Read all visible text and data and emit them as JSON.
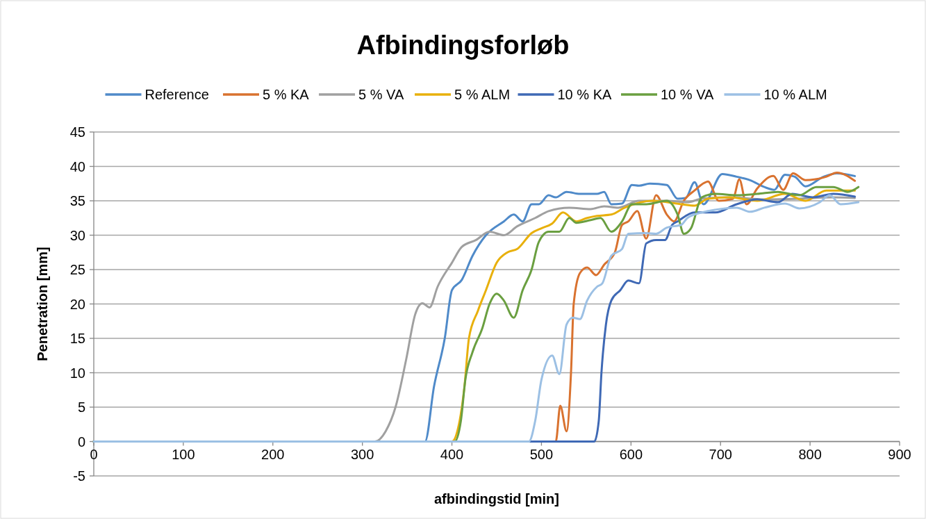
{
  "chart_data": {
    "type": "line",
    "title": "Afbindingsforløb",
    "xlabel": "afbindingstid [min]",
    "ylabel": "Penetration [mm]",
    "xlim": [
      0,
      900
    ],
    "xticks": [
      0,
      100,
      200,
      300,
      400,
      500,
      600,
      700,
      800,
      900
    ],
    "ylim": [
      -5,
      45
    ],
    "yticks": [
      -5,
      0,
      5,
      10,
      15,
      20,
      25,
      30,
      35,
      40,
      45
    ],
    "grid": "y",
    "legend": "top",
    "marker": "none",
    "line_style": "solid",
    "series": [
      {
        "name": "Reference",
        "color": "#4f8ac9",
        "x": [
          0,
          370,
          380,
          392,
          400,
          411,
          423,
          438,
          458,
          469,
          479,
          489,
          497,
          508,
          516,
          528,
          543,
          562,
          570,
          578,
          590,
          601,
          609,
          621,
          640,
          652,
          661,
          671,
          681,
          702,
          718,
          733,
          749,
          760,
          772,
          783,
          795,
          815,
          830,
          850
        ],
        "values": [
          0,
          0,
          8,
          15,
          22,
          23.5,
          27,
          30,
          32,
          33,
          32,
          34.5,
          34.5,
          35.8,
          35.5,
          36.3,
          36,
          36,
          36.3,
          34.5,
          34.6,
          37.3,
          37.2,
          37.5,
          37.3,
          35.3,
          35.4,
          37.7,
          34.5,
          38.9,
          38.5,
          38,
          37,
          36.6,
          38.8,
          38.5,
          37.1,
          38.5,
          39,
          38.6
        ]
      },
      {
        "name": "5 % KA",
        "color": "#d9722f",
        "x": [
          0,
          516,
          521,
          528,
          533,
          536,
          543,
          551,
          561,
          570,
          582,
          590,
          597,
          607,
          617,
          628,
          640,
          648,
          659,
          671,
          686,
          698,
          714,
          721,
          729,
          741,
          759,
          770,
          781,
          795,
          818,
          830,
          850
        ],
        "values": [
          0,
          0,
          5.2,
          1.5,
          10,
          20,
          24.5,
          25.3,
          24.2,
          25.7,
          27.5,
          31.5,
          32,
          33.5,
          29.5,
          35.8,
          33,
          32,
          35,
          36.5,
          37.8,
          35,
          35.3,
          38.1,
          34.5,
          36.8,
          38.6,
          36.6,
          39,
          38,
          38.5,
          39.1,
          37.9
        ]
      },
      {
        "name": "5 % VA",
        "color": "#a0a0a0",
        "x": [
          0,
          314,
          326,
          337,
          349,
          359,
          367,
          375,
          384,
          400,
          411,
          427,
          442,
          458,
          473,
          493,
          508,
          531,
          555,
          570,
          586,
          609,
          640,
          663,
          679,
          710,
          749,
          788,
          826,
          850
        ],
        "values": [
          0,
          0,
          1.5,
          5,
          12,
          18.5,
          20.1,
          19.5,
          22.5,
          26,
          28.3,
          29.3,
          30.5,
          30,
          31.3,
          32.5,
          33.5,
          34,
          33.8,
          34.2,
          34,
          35,
          35,
          34.8,
          35.3,
          35.5,
          35.2,
          35.3,
          35.5,
          35.4
        ]
      },
      {
        "name": "5 % ALM",
        "color": "#e8b00c",
        "x": [
          0,
          400,
          407,
          414,
          419,
          429,
          438,
          450,
          462,
          473,
          489,
          500,
          512,
          524,
          539,
          551,
          562,
          578,
          593,
          624,
          656,
          671,
          686,
          710,
          741,
          772,
          795,
          818,
          850
        ],
        "values": [
          0,
          0,
          2,
          8,
          15,
          19,
          22,
          26,
          27.5,
          28,
          30.3,
          31,
          31.7,
          33.3,
          32,
          32.5,
          32.8,
          33,
          34,
          35,
          34.5,
          34.3,
          35.3,
          35.5,
          35,
          36,
          35,
          36.5,
          36.5
        ]
      },
      {
        "name": "10 % KA",
        "color": "#3f69b5",
        "x": [
          0,
          559,
          564,
          567,
          572,
          578,
          588,
          597,
          609,
          617,
          628,
          638,
          646,
          652,
          671,
          694,
          718,
          741,
          764,
          780,
          803,
          826,
          850
        ],
        "values": [
          0,
          0,
          3,
          10,
          17,
          20.5,
          22,
          23.4,
          23,
          28.8,
          29.3,
          29.3,
          31.5,
          32,
          33.3,
          33.3,
          34.5,
          35.2,
          34.8,
          36,
          35.5,
          36,
          35.6
        ]
      },
      {
        "name": "10 % VA",
        "color": "#6a9f40",
        "x": [
          0,
          403,
          410,
          415,
          423,
          434,
          442,
          450,
          458,
          469,
          479,
          489,
          497,
          508,
          520,
          531,
          539,
          555,
          566,
          578,
          590,
          601,
          617,
          640,
          652,
          659,
          667,
          679,
          694,
          718,
          741,
          764,
          788,
          807,
          826,
          842,
          854
        ],
        "values": [
          0,
          0,
          3,
          9,
          13,
          16.5,
          20,
          21.5,
          20.5,
          18,
          22,
          25,
          29,
          30.5,
          30.5,
          32.5,
          31.8,
          32.2,
          32.5,
          30.5,
          32,
          34.5,
          34.5,
          35,
          33,
          30.2,
          31,
          35.5,
          36,
          35.8,
          36,
          36.3,
          35.8,
          37,
          37,
          36.3,
          37
        ]
      },
      {
        "name": "10 % ALM",
        "color": "#9cc0e4",
        "x": [
          0,
          486,
          493,
          500,
          512,
          520,
          528,
          535,
          543,
          551,
          562,
          568,
          578,
          590,
          597,
          617,
          628,
          640,
          656,
          663,
          679,
          694,
          718,
          733,
          749,
          772,
          788,
          811,
          822,
          834,
          854
        ],
        "values": [
          0,
          0,
          3,
          9,
          12.5,
          9.8,
          17,
          18,
          17.8,
          20.5,
          22.5,
          23,
          27,
          28,
          30.2,
          30.3,
          30.2,
          31.1,
          31.5,
          32.5,
          33.3,
          33.7,
          34,
          33.4,
          34,
          34.6,
          33.9,
          34.8,
          35.8,
          34.5,
          34.8
        ]
      }
    ]
  }
}
